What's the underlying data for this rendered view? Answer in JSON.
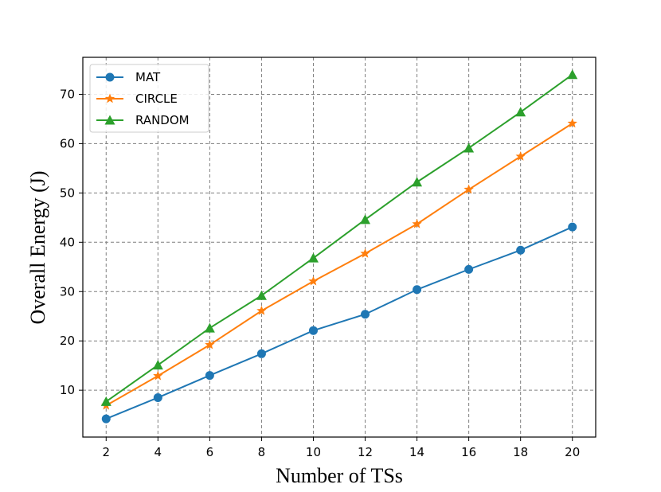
{
  "chart_data": {
    "type": "line",
    "title": "",
    "xlabel": "Number of TSs",
    "ylabel": "Overall Energy (J)",
    "x": [
      2,
      4,
      6,
      8,
      10,
      12,
      14,
      16,
      18,
      20
    ],
    "xticks": [
      "2",
      "4",
      "6",
      "8",
      "10",
      "12",
      "14",
      "16",
      "18",
      "20"
    ],
    "xlim": [
      1.1,
      20.9
    ],
    "yticks": [
      "10",
      "20",
      "30",
      "40",
      "50",
      "60",
      "70"
    ],
    "ylim": [
      0.5,
      77.5
    ],
    "grid": true,
    "legend_position": "top-left",
    "series": [
      {
        "name": "MAT",
        "marker": "circle",
        "color": "#1f77b4",
        "values": [
          4.2,
          8.5,
          13.0,
          17.4,
          22.1,
          25.4,
          30.4,
          34.5,
          38.4,
          43.1
        ]
      },
      {
        "name": "CIRCLE",
        "marker": "star",
        "color": "#ff7f0e",
        "values": [
          6.9,
          12.9,
          19.2,
          26.1,
          32.1,
          37.7,
          43.7,
          50.7,
          57.4,
          64.1
        ]
      },
      {
        "name": "RANDOM",
        "marker": "triangle",
        "color": "#2ca02c",
        "values": [
          7.7,
          15.1,
          22.6,
          29.2,
          36.8,
          44.6,
          52.2,
          59.1,
          66.4,
          74.0
        ]
      }
    ]
  }
}
